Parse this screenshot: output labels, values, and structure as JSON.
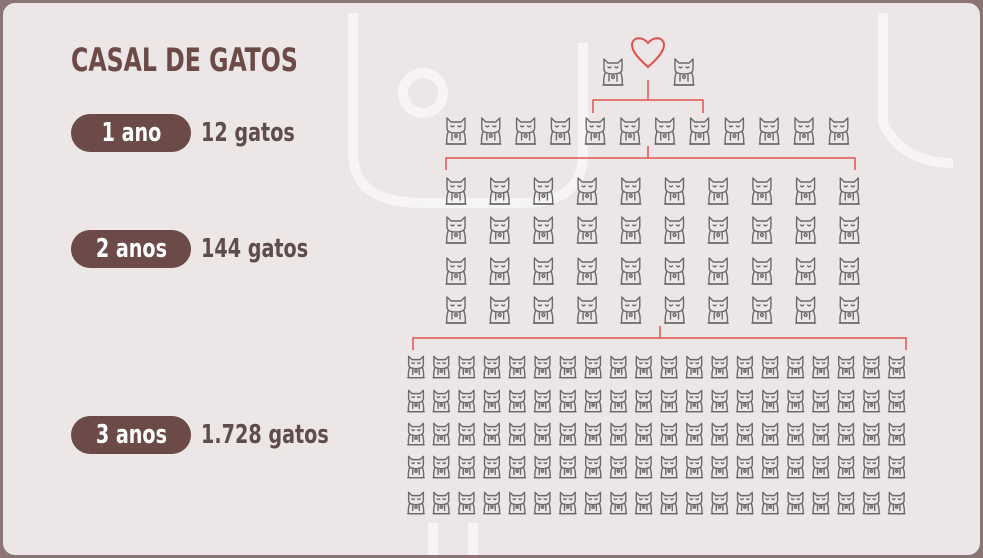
{
  "title": "CASAL DE GATOS",
  "rows": [
    {
      "label": "1 ano",
      "count": "12 gatos"
    },
    {
      "label": "2 anos",
      "count": "144 gatos"
    },
    {
      "label": "3 anos",
      "count": "1.728 gatos"
    }
  ],
  "colors": {
    "accent": "#6b4a48",
    "line": "#e2534e",
    "cat_stroke": "#6a6a6a",
    "background": "#ece6e6",
    "frame": "#8a7574"
  },
  "icons": {
    "cat": "cat-icon",
    "heart": "heart-icon"
  }
}
